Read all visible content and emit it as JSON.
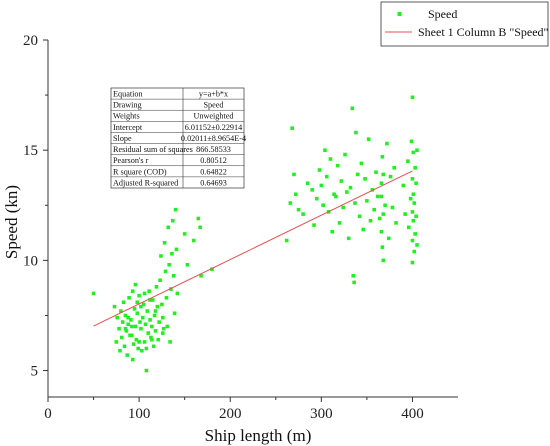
{
  "chart_data": {
    "type": "scatter",
    "xlabel": "Ship length (m)",
    "ylabel": "Speed (kn)",
    "xlim": [
      0,
      450
    ],
    "ylim": [
      3.8,
      20
    ],
    "xticks": [
      0,
      100,
      200,
      300,
      400
    ],
    "yticks": [
      5,
      10,
      15,
      20
    ],
    "legend": {
      "placement": "top-right",
      "entries": [
        "Speed",
        "Sheet 1 Column B \"Speed\""
      ]
    },
    "series": [
      {
        "name": "Speed",
        "kind": "scatter",
        "color": "#22ee22",
        "points": [
          [
            50,
            8.5
          ],
          [
            73,
            7.9
          ],
          [
            75,
            6.3
          ],
          [
            76,
            7.4
          ],
          [
            78,
            6.9
          ],
          [
            79,
            5.9
          ],
          [
            80,
            7.7
          ],
          [
            81,
            6.5
          ],
          [
            82,
            7.2
          ],
          [
            83,
            8.1
          ],
          [
            84,
            6.1
          ],
          [
            85,
            7.5
          ],
          [
            86,
            6.8
          ],
          [
            87,
            5.7
          ],
          [
            88,
            7.1
          ],
          [
            89,
            8.3
          ],
          [
            90,
            6.6
          ],
          [
            91,
            7.3
          ],
          [
            92,
            7.0
          ],
          [
            93,
            5.5
          ],
          [
            94,
            6.2
          ],
          [
            95,
            7.8
          ],
          [
            96,
            8.9
          ],
          [
            97,
            6.4
          ],
          [
            98,
            7.6
          ],
          [
            99,
            6.0
          ],
          [
            100,
            8.4
          ],
          [
            101,
            7.2
          ],
          [
            102,
            6.9
          ],
          [
            103,
            5.9
          ],
          [
            104,
            7.4
          ],
          [
            105,
            8.0
          ],
          [
            106,
            6.3
          ],
          [
            107,
            7.1
          ],
          [
            108,
            5.0
          ],
          [
            109,
            7.7
          ],
          [
            110,
            6.7
          ],
          [
            111,
            8.6
          ],
          [
            112,
            7.3
          ],
          [
            113,
            6.5
          ],
          [
            114,
            7.0
          ],
          [
            115,
            8.2
          ],
          [
            116,
            6.1
          ],
          [
            117,
            7.5
          ],
          [
            118,
            6.8
          ],
          [
            119,
            8.8
          ],
          [
            120,
            7.9
          ],
          [
            121,
            6.4
          ],
          [
            122,
            7.2
          ],
          [
            123,
            9.1
          ],
          [
            124,
            10.2
          ],
          [
            125,
            8.0
          ],
          [
            126,
            7.4
          ],
          [
            127,
            6.9
          ],
          [
            128,
            10.8
          ],
          [
            129,
            9.5
          ],
          [
            130,
            8.3
          ],
          [
            131,
            7.0
          ],
          [
            132,
            11.5
          ],
          [
            133,
            9.8
          ],
          [
            134,
            6.3
          ],
          [
            135,
            8.7
          ],
          [
            136,
            10.3
          ],
          [
            137,
            11.8
          ],
          [
            138,
            9.3
          ],
          [
            139,
            7.6
          ],
          [
            140,
            12.3
          ],
          [
            141,
            10.5
          ],
          [
            142,
            8.5
          ],
          [
            150,
            11.2
          ],
          [
            153,
            9.8
          ],
          [
            160,
            10.9
          ],
          [
            165,
            11.9
          ],
          [
            167,
            11.5
          ],
          [
            168,
            9.3
          ],
          [
            180,
            9.6
          ],
          [
            93,
            8.6
          ],
          [
            98,
            8.1
          ],
          [
            102,
            7.9
          ],
          [
            106,
            8.5
          ],
          [
            112,
            8.2
          ],
          [
            118,
            7.7
          ],
          [
            88,
            7.4
          ],
          [
            85,
            6.9
          ],
          [
            92,
            6.6
          ],
          [
            96,
            7.0
          ],
          [
            100,
            6.3
          ],
          [
            108,
            6.0
          ],
          [
            114,
            6.4
          ],
          [
            126,
            6.7
          ],
          [
            262,
            10.9
          ],
          [
            266,
            12.6
          ],
          [
            268,
            16.0
          ],
          [
            270,
            13.9
          ],
          [
            272,
            13.0
          ],
          [
            275,
            12.3
          ],
          [
            280,
            12.1
          ],
          [
            285,
            13.5
          ],
          [
            290,
            13.2
          ],
          [
            292,
            11.6
          ],
          [
            295,
            12.8
          ],
          [
            298,
            14.1
          ],
          [
            300,
            13.4
          ],
          [
            302,
            12.5
          ],
          [
            304,
            15.0
          ],
          [
            306,
            13.8
          ],
          [
            308,
            12.2
          ],
          [
            310,
            14.6
          ],
          [
            312,
            11.3
          ],
          [
            314,
            13.0
          ],
          [
            316,
            12.9
          ],
          [
            318,
            14.3
          ],
          [
            320,
            11.7
          ],
          [
            322,
            13.6
          ],
          [
            324,
            12.4
          ],
          [
            326,
            14.8
          ],
          [
            328,
            13.1
          ],
          [
            330,
            11.0
          ],
          [
            332,
            13.3
          ],
          [
            334,
            16.9
          ],
          [
            335,
            9.3
          ],
          [
            336,
            9.0
          ],
          [
            337,
            12.6
          ],
          [
            338,
            15.8
          ],
          [
            340,
            13.9
          ],
          [
            342,
            12.0
          ],
          [
            344,
            14.4
          ],
          [
            346,
            11.4
          ],
          [
            348,
            13.7
          ],
          [
            350,
            12.7
          ],
          [
            352,
            15.5
          ],
          [
            354,
            11.8
          ],
          [
            356,
            13.2
          ],
          [
            358,
            12.3
          ],
          [
            360,
            14.0
          ],
          [
            362,
            12.9
          ],
          [
            364,
            11.9
          ],
          [
            366,
            13.5
          ],
          [
            368,
            10.0
          ],
          [
            370,
            12.5
          ],
          [
            372,
            15.3
          ],
          [
            374,
            11.0
          ],
          [
            376,
            13.8
          ],
          [
            378,
            12.4
          ],
          [
            380,
            14.2
          ],
          [
            382,
            11.7
          ],
          [
            390,
            13.4
          ],
          [
            392,
            12.1
          ],
          [
            395,
            14.5
          ],
          [
            396,
            11.5
          ],
          [
            398,
            12.8
          ],
          [
            399,
            15.4
          ],
          [
            400,
            17.4
          ],
          [
            400,
            13.7
          ],
          [
            400,
            12.2
          ],
          [
            400,
            10.9
          ],
          [
            400,
            9.9
          ],
          [
            401,
            14.9
          ],
          [
            401,
            11.8
          ],
          [
            401,
            13.0
          ],
          [
            402,
            12.6
          ],
          [
            402,
            10.4
          ],
          [
            403,
            14.2
          ],
          [
            403,
            11.2
          ],
          [
            404,
            13.5
          ],
          [
            404,
            12.0
          ],
          [
            405,
            15.0
          ],
          [
            405,
            10.7
          ],
          [
            366,
            12.9
          ],
          [
            366,
            11.3
          ],
          [
            367,
            14.7
          ],
          [
            367,
            10.6
          ],
          [
            368,
            12.1
          ],
          [
            368,
            13.9
          ]
        ]
      },
      {
        "name": "Sheet 1 Column B \"Speed\"",
        "kind": "line",
        "color": "#e05050",
        "x": [
          50,
          400
        ],
        "y": [
          7.02,
          14.06
        ]
      }
    ],
    "stats_table": {
      "rows": [
        [
          "Equation",
          "y=a+b*x"
        ],
        [
          "Drawing",
          "Speed"
        ],
        [
          "Weights",
          "Unweighted"
        ],
        [
          "Intercept",
          "6.01152±0.22914"
        ],
        [
          "Slope",
          "0.02011±8.9654E-4"
        ],
        [
          "Residual sum of squares",
          "866.58533"
        ],
        [
          "Pearson's r",
          "0.80512"
        ],
        [
          "R square (COD)",
          "0.64822"
        ],
        [
          "Adjusted R-squared",
          "0.64693"
        ]
      ]
    }
  }
}
